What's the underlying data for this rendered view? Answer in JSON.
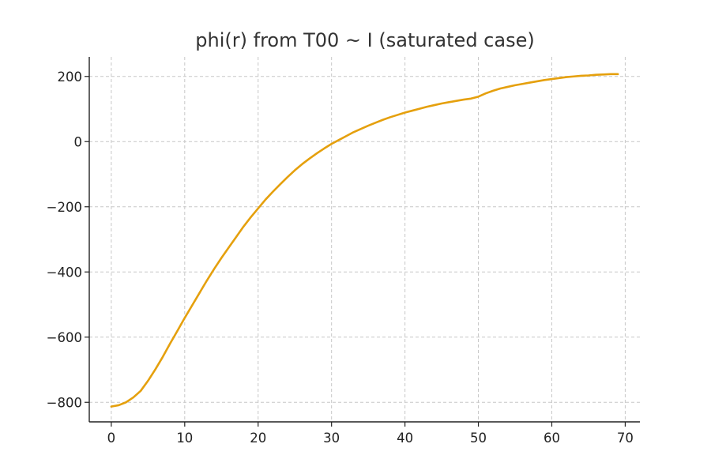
{
  "chart_data": {
    "type": "line",
    "title": "phi(r) from T00 ~ I (saturated case)",
    "xlabel": "",
    "ylabel": "",
    "xlim": [
      -3,
      72
    ],
    "ylim": [
      -860,
      260
    ],
    "x_ticks": [
      0,
      10,
      20,
      30,
      40,
      50,
      60,
      70
    ],
    "x_tick_labels": [
      "0",
      "10",
      "20",
      "30",
      "40",
      "50",
      "60",
      "70"
    ],
    "y_ticks": [
      200,
      0,
      -200,
      -400,
      -600,
      -800
    ],
    "y_tick_labels": [
      "200",
      "0",
      "−200",
      "−400",
      "−600",
      "−800"
    ],
    "grid": true,
    "legend": "none",
    "series": [
      {
        "color": "#e5a00d",
        "x": [
          0,
          1,
          2,
          3,
          4,
          5,
          6,
          7,
          8,
          9,
          10,
          11,
          12,
          13,
          14,
          15,
          16,
          17,
          18,
          19,
          20,
          21,
          22,
          23,
          24,
          25,
          26,
          27,
          28,
          29,
          30,
          31,
          32,
          33,
          34,
          35,
          36,
          37,
          38,
          39,
          40,
          41,
          42,
          43,
          44,
          45,
          46,
          47,
          48,
          49,
          50,
          51,
          52,
          53,
          54,
          55,
          56,
          57,
          58,
          59,
          60,
          61,
          62,
          63,
          64,
          65,
          66,
          67,
          68,
          69
        ],
        "y": [
          -813,
          -809,
          -800,
          -785,
          -765,
          -734,
          -699,
          -661,
          -620,
          -581,
          -541,
          -503,
          -465,
          -427,
          -391,
          -357,
          -325,
          -293,
          -261,
          -232,
          -205,
          -178,
          -154,
          -131,
          -109,
          -88,
          -69,
          -52,
          -36,
          -21,
          -7,
          5,
          17,
          29,
          39,
          49,
          58,
          67,
          75,
          82,
          89,
          95,
          101,
          107,
          112,
          117,
          121,
          125,
          129,
          132,
          138,
          148,
          156,
          163,
          168,
          173,
          177,
          181,
          185,
          189,
          192,
          195,
          198,
          200,
          202,
          203,
          205,
          206,
          207,
          207
        ]
      }
    ]
  }
}
